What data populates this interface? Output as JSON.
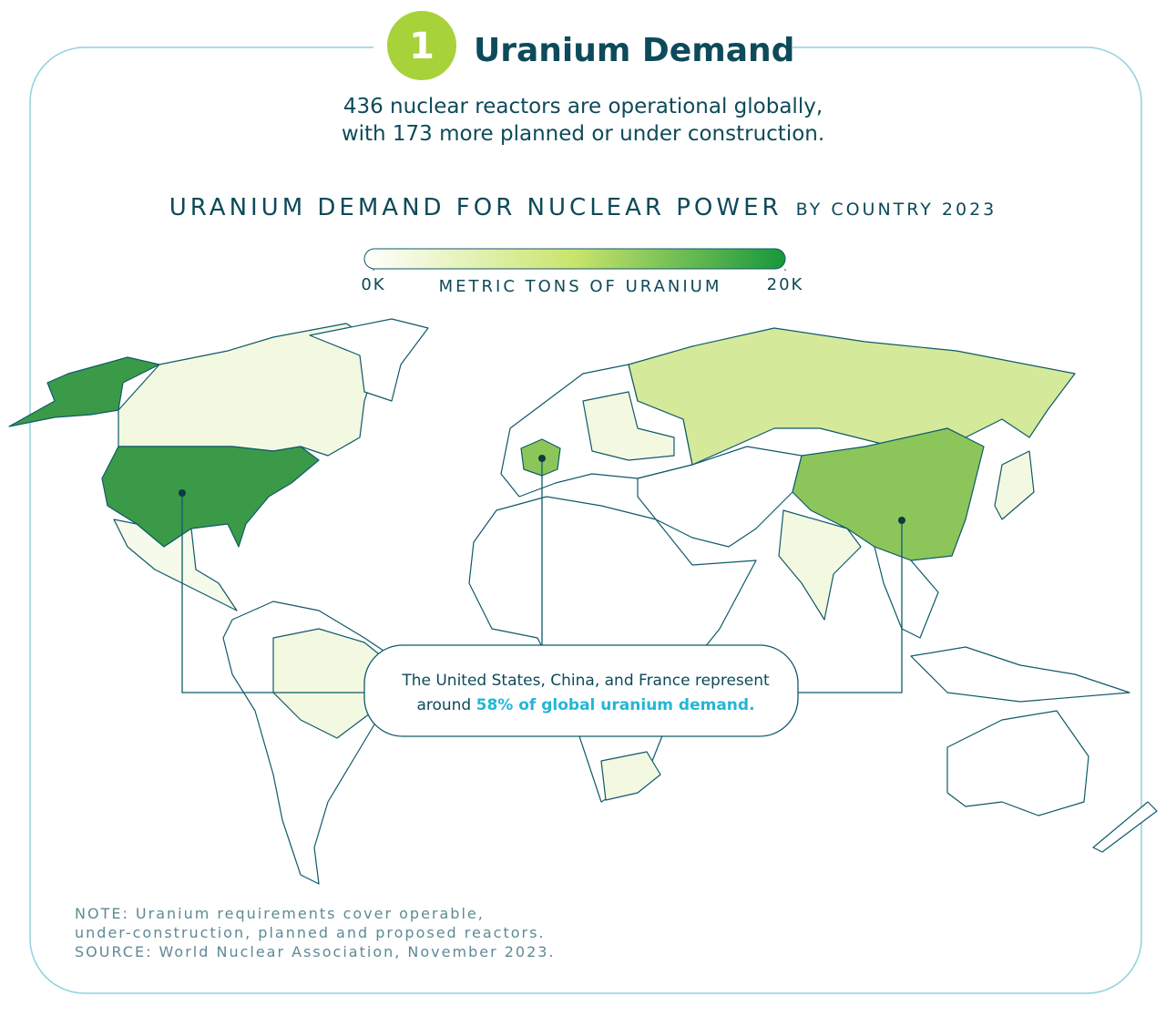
{
  "header": {
    "step": 1,
    "title": "Uranium Demand",
    "subtitle": [
      "436 nuclear reactors are operational globally,",
      "with 173 more planned or under construction."
    ]
  },
  "map": {
    "title": "URANIUM DEMAND FOR NUCLEAR POWER",
    "title_suffix": "BY COUNTRY 2023",
    "legend": {
      "label": "METRIC TONS OF URANIUM",
      "range": [
        0,
        20000
      ],
      "ticks": [
        {
          "value": 0,
          "label": "0K"
        },
        {
          "value": 20000,
          "label": "20K"
        }
      ],
      "colors": [
        "#ffffff",
        "#c9e46c",
        "#16973c"
      ]
    },
    "callout": {
      "line1": "The United States, China, and France represent",
      "lead": "around",
      "highlight": "58% of global uranium demand."
    }
  },
  "notes": [
    "NOTE: Uranium requirements cover operable,",
    "under-construction, planned and proposed reactors.",
    "SOURCE: World Nuclear Association, November 2023."
  ]
}
